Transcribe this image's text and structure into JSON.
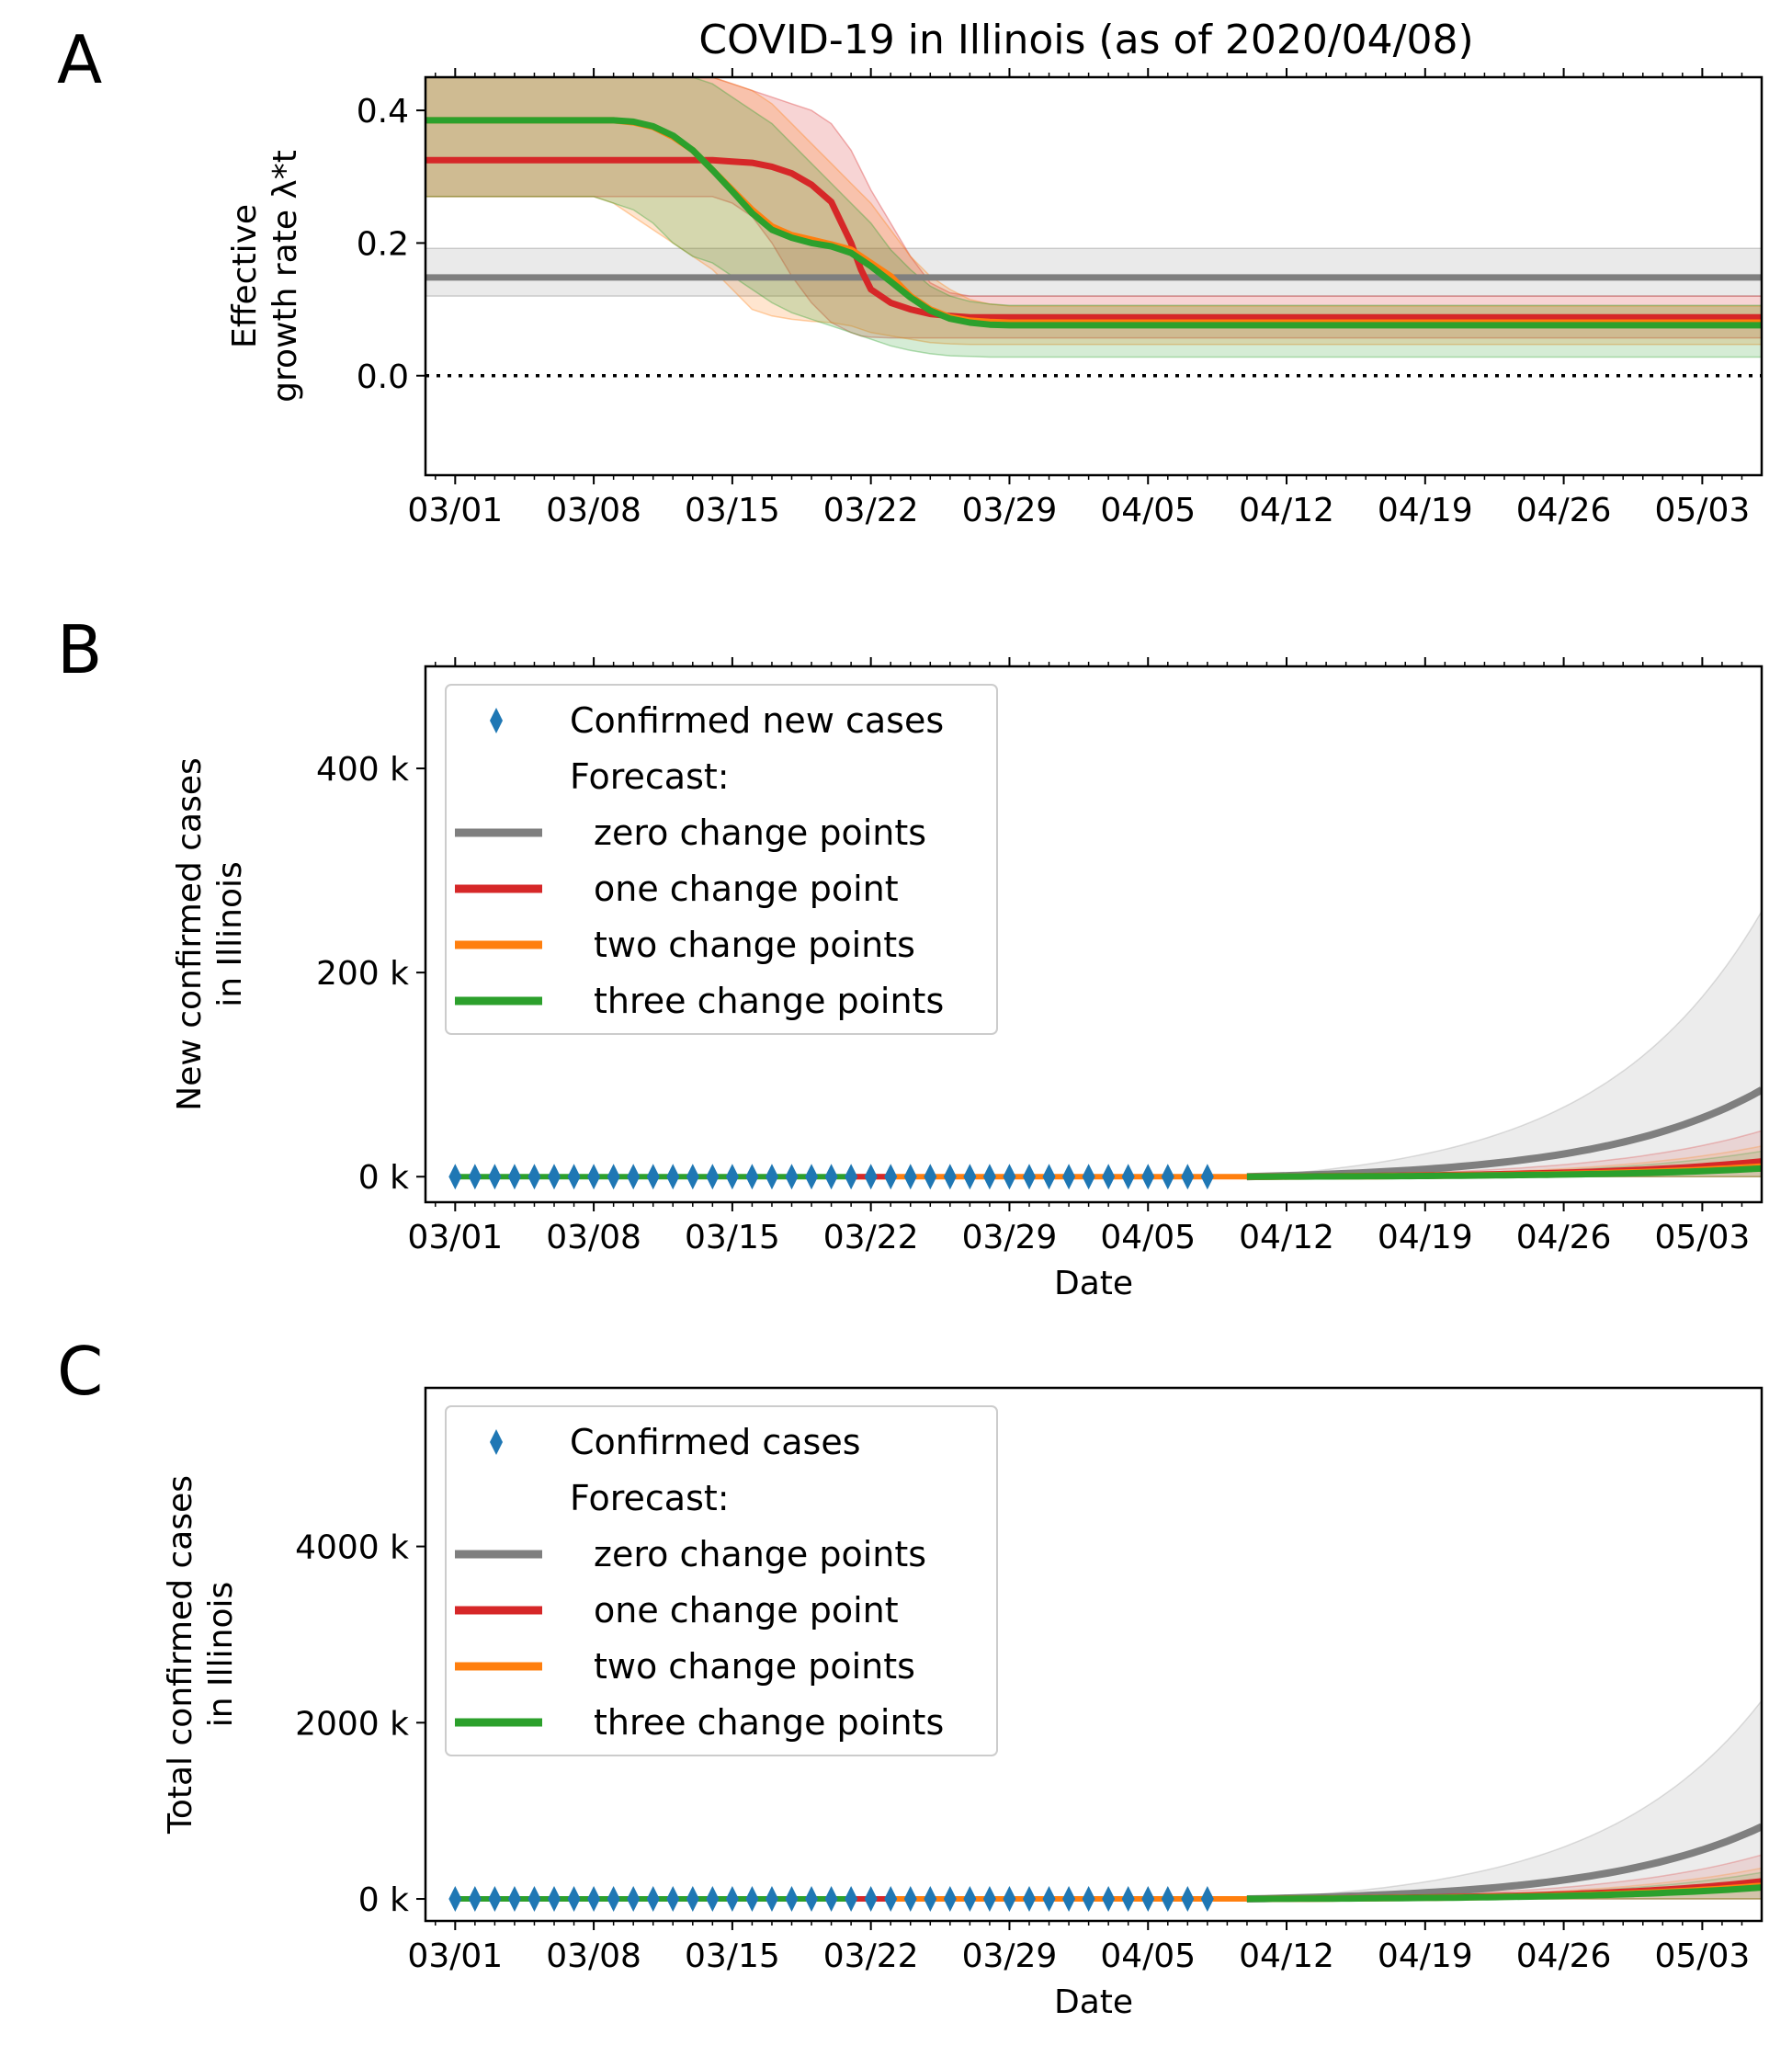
{
  "chart_data": [
    {
      "panel": "A",
      "type": "line",
      "title": "COVID-19 in Illinois (as of 2020/04/08)",
      "ylabel_line1": "Effective",
      "ylabel_line2": "growth rate λ*t",
      "ylim": [
        -0.15,
        0.45
      ],
      "yticks": [
        0.0,
        0.2,
        0.4
      ],
      "ytick_labels": [
        "0.0",
        "0.2",
        "0.4"
      ],
      "xlim_days": [
        -1.5,
        66
      ],
      "xtick_labels": [
        "03/01",
        "03/08",
        "03/15",
        "03/22",
        "03/29",
        "04/05",
        "04/12",
        "04/19",
        "04/26",
        "05/03"
      ],
      "reference_line": 0.0,
      "series": [
        {
          "color": "#7f7f7f",
          "x": [
            -1.5,
            66
          ],
          "y": [
            0.148,
            0.148
          ],
          "band_low": [
            0.12,
            0.12
          ],
          "band_high": [
            0.192,
            0.192
          ]
        },
        {
          "color": "#d62728",
          "x": [
            -1.5,
            0,
            7,
            10,
            12,
            13,
            14,
            15,
            16,
            17,
            18,
            19,
            20,
            20.5,
            21,
            22,
            23,
            24,
            25,
            26,
            28,
            66
          ],
          "y": [
            0.325,
            0.325,
            0.325,
            0.325,
            0.325,
            0.325,
            0.323,
            0.321,
            0.315,
            0.305,
            0.288,
            0.262,
            0.2,
            0.16,
            0.13,
            0.11,
            0.1,
            0.093,
            0.09,
            0.088,
            0.088,
            0.088
          ],
          "band_low": [
            0.27,
            0.27,
            0.27,
            0.27,
            0.27,
            0.27,
            0.26,
            0.24,
            0.2,
            0.15,
            0.11,
            0.08,
            0.065,
            0.06,
            0.058,
            0.057,
            0.057,
            0.057,
            0.057,
            0.057,
            0.057,
            0.057
          ],
          "band_high": [
            0.45,
            0.45,
            0.45,
            0.45,
            0.45,
            0.45,
            0.44,
            0.43,
            0.42,
            0.41,
            0.4,
            0.38,
            0.34,
            0.31,
            0.28,
            0.23,
            0.18,
            0.14,
            0.125,
            0.12,
            0.12,
            0.12
          ]
        },
        {
          "color": "#ff7f0e",
          "x": [
            -1.5,
            0,
            7,
            8,
            9,
            10,
            11,
            12,
            13,
            14,
            15,
            16,
            17,
            18,
            19,
            20,
            21,
            22,
            23,
            24,
            25,
            26,
            27,
            28,
            66
          ],
          "y": [
            0.385,
            0.385,
            0.385,
            0.385,
            0.382,
            0.375,
            0.36,
            0.34,
            0.31,
            0.28,
            0.25,
            0.225,
            0.212,
            0.205,
            0.198,
            0.19,
            0.17,
            0.15,
            0.12,
            0.1,
            0.088,
            0.083,
            0.081,
            0.08,
            0.08
          ],
          "band_low": [
            0.27,
            0.27,
            0.27,
            0.26,
            0.24,
            0.22,
            0.2,
            0.18,
            0.16,
            0.13,
            0.1,
            0.09,
            0.085,
            0.082,
            0.08,
            0.075,
            0.065,
            0.06,
            0.055,
            0.05,
            0.048,
            0.047,
            0.047,
            0.047,
            0.047
          ],
          "band_high": [
            0.45,
            0.45,
            0.45,
            0.45,
            0.45,
            0.45,
            0.45,
            0.45,
            0.45,
            0.44,
            0.43,
            0.41,
            0.38,
            0.35,
            0.32,
            0.29,
            0.26,
            0.22,
            0.18,
            0.15,
            0.13,
            0.115,
            0.108,
            0.105,
            0.105
          ]
        },
        {
          "color": "#2ca02c",
          "x": [
            -1.5,
            0,
            7,
            8,
            9,
            10,
            11,
            12,
            13,
            14,
            15,
            16,
            17,
            18,
            19,
            20,
            21,
            22,
            23,
            24,
            25,
            26,
            27,
            28,
            66
          ],
          "y": [
            0.385,
            0.385,
            0.385,
            0.385,
            0.383,
            0.376,
            0.362,
            0.34,
            0.31,
            0.278,
            0.245,
            0.22,
            0.208,
            0.2,
            0.195,
            0.185,
            0.165,
            0.142,
            0.118,
            0.098,
            0.086,
            0.08,
            0.077,
            0.076,
            0.076
          ],
          "band_low": [
            0.27,
            0.27,
            0.27,
            0.26,
            0.25,
            0.23,
            0.2,
            0.18,
            0.17,
            0.15,
            0.13,
            0.11,
            0.095,
            0.085,
            0.075,
            0.065,
            0.055,
            0.045,
            0.038,
            0.033,
            0.03,
            0.029,
            0.028,
            0.028,
            0.028
          ],
          "band_high": [
            0.45,
            0.45,
            0.45,
            0.45,
            0.45,
            0.45,
            0.45,
            0.45,
            0.44,
            0.42,
            0.4,
            0.38,
            0.35,
            0.32,
            0.29,
            0.26,
            0.23,
            0.19,
            0.16,
            0.135,
            0.12,
            0.112,
            0.108,
            0.106,
            0.106
          ]
        }
      ]
    },
    {
      "panel": "B",
      "type": "line",
      "ylabel_line1": "New confirmed cases",
      "ylabel_line2": "in Illinois",
      "xlabel": "Date",
      "ylim": [
        -25,
        500
      ],
      "yticks": [
        0,
        200,
        400
      ],
      "ytick_labels": [
        "0 k",
        "200 k",
        "400 k"
      ],
      "xlim_days": [
        -1.5,
        66
      ],
      "xtick_labels": [
        "03/01",
        "03/08",
        "03/15",
        "03/22",
        "03/29",
        "04/05",
        "04/12",
        "04/19",
        "04/26",
        "05/03"
      ],
      "observed_days_range": [
        0,
        38
      ],
      "observed_value": 0,
      "fit_end_day": 40,
      "forecast_end": {
        "zero": 85,
        "one": 15,
        "two": 10,
        "three": 8
      },
      "forecast_band_high": {
        "zero": 260,
        "one": 45,
        "two": 30,
        "three": 25
      },
      "legend": {
        "observed": "Confirmed new cases",
        "forecast_header": "Forecast:",
        "entries": [
          "zero change points",
          "one change point",
          "two change points",
          "three change points"
        ]
      }
    },
    {
      "panel": "C",
      "type": "line",
      "ylabel_line1": "Total confirmed cases",
      "ylabel_line2": "in Illinois",
      "xlabel": "Date",
      "ylim": [
        -250,
        5800
      ],
      "yticks": [
        0,
        2000,
        4000
      ],
      "ytick_labels": [
        "0 k",
        "2000 k",
        "4000 k"
      ],
      "xlim_days": [
        -1.5,
        66
      ],
      "xtick_labels": [
        "03/01",
        "03/08",
        "03/15",
        "03/22",
        "03/29",
        "04/05",
        "04/12",
        "04/19",
        "04/26",
        "05/03"
      ],
      "observed_days_range": [
        0,
        38
      ],
      "observed_value": 0,
      "fit_end_day": 40,
      "forecast_end": {
        "zero": 820,
        "one": 200,
        "two": 150,
        "three": 130
      },
      "forecast_band_high": {
        "zero": 2250,
        "one": 500,
        "two": 350,
        "three": 300
      },
      "legend": {
        "observed": "Confirmed cases",
        "forecast_header": "Forecast:",
        "entries": [
          "zero change points",
          "one change point",
          "two change points",
          "three change points"
        ]
      }
    }
  ],
  "panel_letters": [
    "A",
    "B",
    "C"
  ],
  "colors": {
    "observed": "#1f77b4",
    "zero": "#7f7f7f",
    "one": "#d62728",
    "two": "#ff7f0e",
    "three": "#2ca02c"
  }
}
